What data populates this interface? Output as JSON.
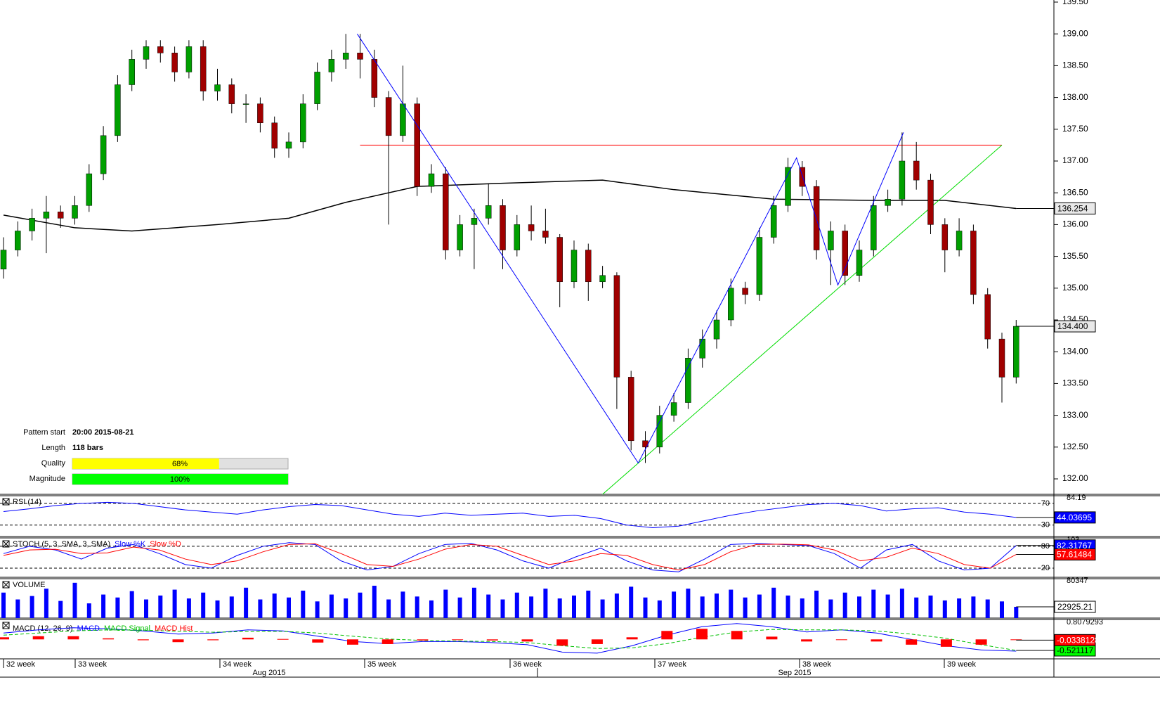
{
  "chart_data": [
    {
      "type": "candlestick",
      "ohlc": [
        [
          135.3,
          135.8,
          135.15,
          135.6
        ],
        [
          135.6,
          136.05,
          135.5,
          135.9
        ],
        [
          135.9,
          136.25,
          135.75,
          136.1
        ],
        [
          136.1,
          136.45,
          135.55,
          136.2
        ],
        [
          136.2,
          136.3,
          135.95,
          136.1
        ],
        [
          136.1,
          136.45,
          136.0,
          136.3
        ],
        [
          136.3,
          136.95,
          136.2,
          136.8
        ],
        [
          136.8,
          137.55,
          136.7,
          137.4
        ],
        [
          137.4,
          138.35,
          137.3,
          138.2
        ],
        [
          138.2,
          138.75,
          138.1,
          138.6
        ],
        [
          138.6,
          138.9,
          138.45,
          138.8
        ],
        [
          138.8,
          138.9,
          138.55,
          138.7
        ],
        [
          138.7,
          138.8,
          138.25,
          138.4
        ],
        [
          138.4,
          138.9,
          138.3,
          138.8
        ],
        [
          138.8,
          138.9,
          137.95,
          138.1
        ],
        [
          138.1,
          138.45,
          137.95,
          138.2
        ],
        [
          138.2,
          138.3,
          137.75,
          137.9
        ],
        [
          137.9,
          138.05,
          137.6,
          137.9
        ],
        [
          137.9,
          138.0,
          137.45,
          137.6
        ],
        [
          137.6,
          137.7,
          137.05,
          137.2
        ],
        [
          137.2,
          137.45,
          137.05,
          137.3
        ],
        [
          137.3,
          138.05,
          137.2,
          137.9
        ],
        [
          137.9,
          138.55,
          137.8,
          138.4
        ],
        [
          138.4,
          138.75,
          138.25,
          138.6
        ],
        [
          138.6,
          139.0,
          138.45,
          138.7
        ],
        [
          138.7,
          139.0,
          138.3,
          138.6
        ],
        [
          138.6,
          138.75,
          137.85,
          138.0
        ],
        [
          138.0,
          138.1,
          136.0,
          137.4
        ],
        [
          137.4,
          138.5,
          137.3,
          137.9
        ],
        [
          137.9,
          138.0,
          136.45,
          136.6
        ],
        [
          136.6,
          136.95,
          136.5,
          136.8
        ],
        [
          136.8,
          136.9,
          135.45,
          135.6
        ],
        [
          135.6,
          136.15,
          135.5,
          136.0
        ],
        [
          136.0,
          136.25,
          135.3,
          136.1
        ],
        [
          136.1,
          136.65,
          136.0,
          136.3
        ],
        [
          136.3,
          136.4,
          135.3,
          135.6
        ],
        [
          135.6,
          136.15,
          135.5,
          136.0
        ],
        [
          136.0,
          136.3,
          135.75,
          135.9
        ],
        [
          135.9,
          136.25,
          135.7,
          135.8
        ],
        [
          135.8,
          135.85,
          134.7,
          135.1
        ],
        [
          135.1,
          135.75,
          135.0,
          135.6
        ],
        [
          135.6,
          135.7,
          134.8,
          135.1
        ],
        [
          135.1,
          135.35,
          135.0,
          135.2
        ],
        [
          135.2,
          135.25,
          133.1,
          133.6
        ],
        [
          133.6,
          133.7,
          132.45,
          132.6
        ],
        [
          132.6,
          132.75,
          132.25,
          132.5
        ],
        [
          132.5,
          133.15,
          132.4,
          133.0
        ],
        [
          133.0,
          133.35,
          132.9,
          133.2
        ],
        [
          133.2,
          134.05,
          133.1,
          133.9
        ],
        [
          133.9,
          134.35,
          133.75,
          134.2
        ],
        [
          134.2,
          134.65,
          134.05,
          134.5
        ],
        [
          134.5,
          135.15,
          134.4,
          135.0
        ],
        [
          135.0,
          135.1,
          134.75,
          134.9
        ],
        [
          134.9,
          135.95,
          134.8,
          135.8
        ],
        [
          135.8,
          136.45,
          135.7,
          136.3
        ],
        [
          136.3,
          137.05,
          136.2,
          136.9
        ],
        [
          136.9,
          137.0,
          136.45,
          136.6
        ],
        [
          136.6,
          136.7,
          135.45,
          135.6
        ],
        [
          135.6,
          136.05,
          135.05,
          135.9
        ],
        [
          135.9,
          136.0,
          135.05,
          135.2
        ],
        [
          135.2,
          135.75,
          135.1,
          135.6
        ],
        [
          135.6,
          136.45,
          135.5,
          136.3
        ],
        [
          136.3,
          136.55,
          136.2,
          136.4
        ],
        [
          136.4,
          137.45,
          136.3,
          137.0
        ],
        [
          137.0,
          137.3,
          136.55,
          136.7
        ],
        [
          136.7,
          136.8,
          135.85,
          136.0
        ],
        [
          136.0,
          136.1,
          135.25,
          135.6
        ],
        [
          135.6,
          136.1,
          135.5,
          135.9
        ],
        [
          135.9,
          136.0,
          134.75,
          134.9
        ],
        [
          134.9,
          135.0,
          134.05,
          134.2
        ],
        [
          134.2,
          134.3,
          133.2,
          133.6
        ],
        [
          133.6,
          134.5,
          133.5,
          134.4
        ]
      ],
      "up_color": "#00a000",
      "down_color": "#a00000",
      "ylim": [
        131.757,
        139.533
      ],
      "yticks": [
        {
          "value": 132,
          "label": "132.00"
        },
        {
          "value": 132.5,
          "label": "132.50"
        },
        {
          "value": 133,
          "label": "133.00"
        },
        {
          "value": 133.5,
          "label": "133.50"
        },
        {
          "value": 134,
          "label": "134.00"
        },
        {
          "value": 134.5,
          "label": "134.50"
        },
        {
          "value": 135,
          "label": "135.00"
        },
        {
          "value": 135.5,
          "label": "135.50"
        },
        {
          "value": 136,
          "label": "136.00"
        },
        {
          "value": 136.5,
          "label": "136.50"
        },
        {
          "value": 137,
          "label": "137.00"
        },
        {
          "value": 137.5,
          "label": "137.50"
        },
        {
          "value": 138,
          "label": "138.00"
        },
        {
          "value": 138.5,
          "label": "138.50"
        },
        {
          "value": 139,
          "label": "139.00"
        },
        {
          "value": 139.5,
          "label": "139.50"
        }
      ],
      "ma": {
        "bars": [
          0,
          5,
          9,
          15,
          20,
          24,
          29,
          35,
          42,
          47,
          54,
          61,
          66,
          71
        ],
        "values": [
          136.15,
          135.95,
          135.9,
          136.0,
          136.1,
          136.35,
          136.6,
          136.65,
          136.7,
          136.55,
          136.4,
          136.38,
          136.38,
          136.254
        ],
        "color": "#000000"
      },
      "last_price": {
        "value": 134.4,
        "label": "134.400"
      },
      "resistance": {
        "bars": [
          25,
          70
        ],
        "price": 137.25,
        "color": "#ff0000"
      },
      "support": {
        "bars": [
          42,
          70
        ],
        "prices": [
          131.757,
          137.25
        ],
        "color": "#00dd00"
      },
      "zigzag": {
        "bars": [
          24.8,
          44.5,
          55.6,
          58.5,
          63.1
        ],
        "prices": [
          139.0,
          132.25,
          137.05,
          135.05,
          137.45
        ],
        "color": "#0000ff"
      },
      "x_labels": [
        "32 week",
        "33 week",
        "34 week",
        "35 week",
        "36 week",
        "37 week",
        "38 week",
        "39 week"
      ],
      "months": [
        "Aug 2015",
        "Sep 2015"
      ]
    },
    {
      "type": "line",
      "title": "RSI (14)",
      "ylim": [
        8.8,
        84.19
      ],
      "yticks": [
        30,
        70
      ],
      "series": [
        {
          "color": "#0000ff",
          "values": [
            55,
            60,
            66,
            70,
            72,
            70,
            64,
            58,
            54,
            50,
            58,
            64,
            68,
            66,
            58,
            50,
            46,
            52,
            48,
            50,
            52,
            46,
            48,
            42,
            30,
            25,
            28,
            38,
            48,
            56,
            62,
            68,
            70,
            66,
            56,
            60,
            62,
            54,
            50,
            44.03695
          ]
        }
      ]
    },
    {
      "type": "line",
      "title": "STOCH (5, 3, SMA, 3, SMA)",
      "ylim": [
        -5,
        103
      ],
      "yticks": [
        20,
        80
      ],
      "series": [
        {
          "name": "Slow %K",
          "color": "#0000ff",
          "values": [
            60,
            80,
            70,
            45,
            75,
            85,
            60,
            30,
            20,
            55,
            80,
            90,
            85,
            40,
            15,
            25,
            60,
            85,
            88,
            70,
            40,
            20,
            50,
            75,
            40,
            15,
            10,
            45,
            85,
            88,
            85,
            82,
            60,
            20,
            70,
            85,
            40,
            15,
            20,
            82.31767
          ]
        },
        {
          "name": "Slow %D",
          "color": "#ff0000",
          "values": [
            55,
            70,
            72,
            60,
            62,
            78,
            70,
            45,
            30,
            40,
            65,
            85,
            87,
            60,
            30,
            25,
            45,
            72,
            85,
            80,
            55,
            30,
            40,
            60,
            55,
            30,
            15,
            30,
            65,
            85,
            86,
            84,
            70,
            40,
            50,
            75,
            60,
            30,
            20,
            57.61484
          ]
        }
      ]
    },
    {
      "type": "bar",
      "title": "VOLUME",
      "ylim": [
        0,
        80347
      ],
      "color": "#0000ff",
      "values": [
        52000,
        38000,
        45000,
        60000,
        35000,
        72000,
        30000,
        48000,
        42000,
        55000,
        38000,
        46000,
        58000,
        40000,
        52000,
        36000,
        44000,
        62000,
        38000,
        50000,
        42000,
        56000,
        34000,
        48000,
        40000,
        52000,
        66000,
        38000,
        54000,
        44000,
        36000,
        58000,
        42000,
        62000,
        48000,
        38000,
        52000,
        44000,
        60000,
        40000,
        46000,
        56000,
        38000,
        50000,
        64000,
        42000,
        36000,
        54000,
        60000,
        44000,
        50000,
        58000,
        42000,
        48000,
        62000,
        46000,
        40000,
        56000,
        38000,
        52000,
        44000,
        58000,
        48000,
        60000,
        42000,
        46000,
        36000,
        40000,
        44000,
        38000,
        34000,
        22925.21
      ]
    },
    {
      "type": "line",
      "title": "MACD (12, 26, 9)",
      "ylim": [
        -0.92,
        0.8079293
      ],
      "series": [
        {
          "name": "MACD",
          "color": "#0000ff",
          "values": [
            0.3,
            0.45,
            0.55,
            0.5,
            0.4,
            0.25,
            0.3,
            0.45,
            0.4,
            0.15,
            -0.1,
            -0.2,
            -0.1,
            -0.1,
            -0.15,
            -0.25,
            -0.6,
            -0.65,
            -0.3,
            0.2,
            0.6,
            0.75,
            0.6,
            0.35,
            0.45,
            0.3,
            0.0,
            -0.3,
            -0.5,
            -0.555
          ]
        },
        {
          "name": "MACD Signal",
          "color": "#00c000",
          "dashed": true,
          "values": [
            0.2,
            0.3,
            0.4,
            0.45,
            0.44,
            0.38,
            0.34,
            0.37,
            0.38,
            0.3,
            0.15,
            0.02,
            -0.05,
            -0.08,
            -0.1,
            -0.15,
            -0.3,
            -0.43,
            -0.4,
            -0.2,
            0.1,
            0.35,
            0.47,
            0.45,
            0.45,
            0.4,
            0.25,
            0.05,
            -0.25,
            -0.521117
          ]
        },
        {
          "name": "MACD Hist",
          "color": "#ff0000",
          "bars": true,
          "values": [
            0.1,
            0.15,
            0.15,
            0.05,
            -0.04,
            -0.13,
            -0.04,
            0.08,
            0.02,
            -0.15,
            -0.25,
            -0.22,
            -0.05,
            -0.02,
            -0.05,
            -0.1,
            -0.3,
            -0.22,
            0.1,
            0.4,
            0.5,
            0.4,
            0.13,
            -0.1,
            0,
            -0.1,
            -0.25,
            -0.35,
            -0.25,
            -0.0338128
          ]
        }
      ]
    }
  ],
  "pattern": {
    "rows": [
      {
        "label": "Pattern start",
        "value": "20:00 2015-08-21"
      },
      {
        "label": "Length",
        "value": "118 bars"
      },
      {
        "label": "Quality",
        "value": 68,
        "value_label": "68%",
        "color": "#ffff00"
      },
      {
        "label": "Magnitude",
        "value": 100,
        "value_label": "100%",
        "color": "#00ff00"
      }
    ]
  }
}
